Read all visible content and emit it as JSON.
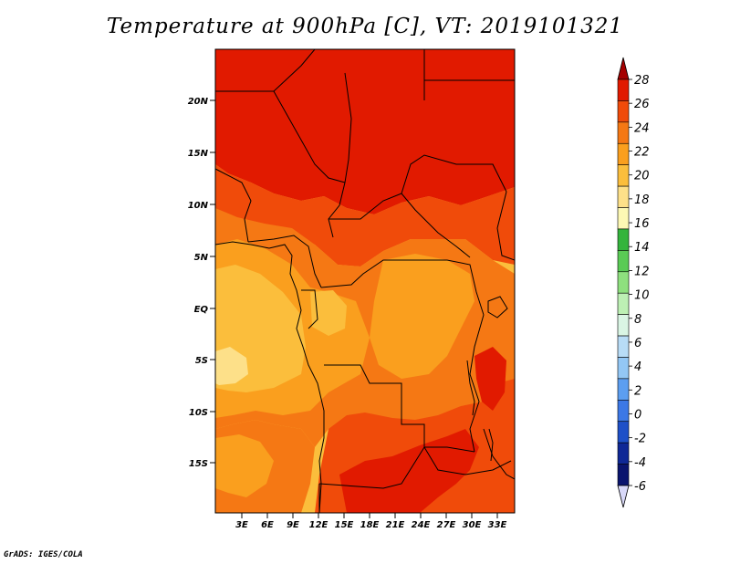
{
  "title": "Temperature at 900hPa [C], VT: 2019101321",
  "credit": "GrADS: IGES/COLA",
  "map": {
    "lat_labels": [
      "20N",
      "15N",
      "10N",
      "5N",
      "EQ",
      "5S",
      "10S",
      "15S"
    ],
    "lon_labels": [
      "3E",
      "6E",
      "9E",
      "12E",
      "15E",
      "18E",
      "21E",
      "24E",
      "27E",
      "30E",
      "33E"
    ]
  },
  "colorbar": {
    "units": "C",
    "labels": [
      "28",
      "26",
      "24",
      "22",
      "20",
      "18",
      "16",
      "14",
      "12",
      "10",
      "8",
      "6",
      "4",
      "2",
      "0",
      "-2",
      "-4",
      "-6"
    ],
    "colors": [
      "#a50000",
      "#e11a00",
      "#f04b0a",
      "#f57814",
      "#fa9f1e",
      "#fbbe3c",
      "#fde089",
      "#fdf8b4",
      "#34b43c",
      "#5acb55",
      "#8ee07e",
      "#bdf0b4",
      "#daf5e4",
      "#b8dcf6",
      "#93c7f5",
      "#5c9ef0",
      "#3c78e6",
      "#1e50c8",
      "#0f2896",
      "#0a146e",
      "#d8d8f8"
    ]
  },
  "legend_colors": {
    "over_28": "#c81800",
    "24_28": "#e11a00",
    "22_24": "#f57814",
    "20_22": "#fa9f1e",
    "18_20": "#fbbe3c",
    "16_18": "#fde089",
    "under_minus6": "#d8d8f8"
  }
}
